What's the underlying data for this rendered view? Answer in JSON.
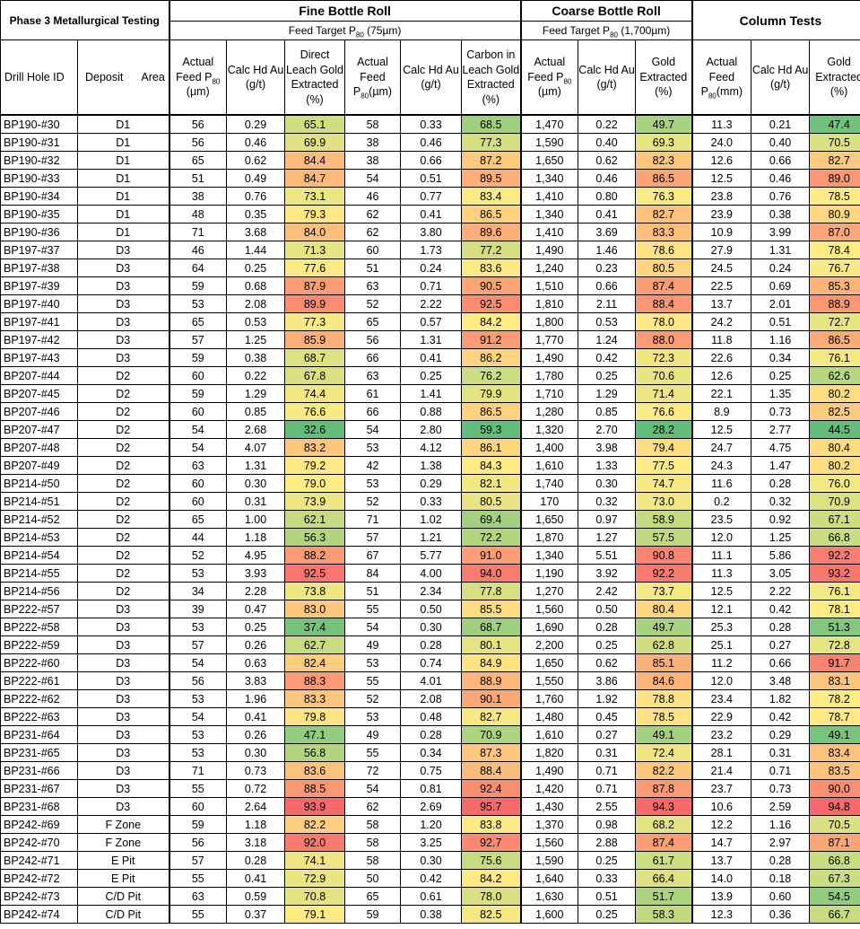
{
  "title": "Phase 3 Metallurgical Testing",
  "groups": {
    "fine": {
      "title": "Fine Bottle Roll",
      "target": "Feed Target P₈₀ (75µm)",
      "target_pre": "Feed Target P",
      "target_sub": "80",
      "target_post": " (75µm)"
    },
    "coarse": {
      "title": "Coarse Bottle Roll",
      "target_pre": "Feed Target P",
      "target_sub": "80",
      "target_post": " (1,700µm)"
    },
    "column": {
      "title": "Column Tests"
    }
  },
  "headers": {
    "drill": "Drill Hole ID",
    "deposit": "Deposit",
    "area": "Area",
    "fine_feed_pre": "Actual Feed P",
    "fine_feed_sub": "80",
    "fine_feed_post": " (µm)",
    "fine_calc": "Calc Hd Au (g/t)",
    "fine_direct": "Direct Leach Gold Extracted (%)",
    "fine_feed2_pre": "Actual Feed P",
    "fine_feed2_sub": "80",
    "fine_feed2_post": "(µm)",
    "fine_calc2": "Calc Hd Au (g/t)",
    "fine_cil": "Carbon in Leach Gold Extracted (%)",
    "coarse_feed_pre": "Actual Feed P",
    "coarse_feed_sub": "80",
    "coarse_feed_post": " (µm)",
    "coarse_calc": "Calc Hd Au (g/t)",
    "coarse_gold": "Gold Extracted (%)",
    "col_feed_pre": "Actual Feed P",
    "col_feed_sub": "80",
    "col_feed_post": "(mm)",
    "col_calc": "Calc Hd Au (g/t)",
    "col_gold": "Gold Extracted (%)"
  },
  "heat_colors": {
    "low": "#63be7b",
    "mid": "#ffeb84",
    "high": "#f8696b"
  },
  "rows": [
    [
      "BP190-#30",
      "D1",
      "56",
      "0.29",
      "65.1",
      "58",
      "0.33",
      "68.5",
      "1,470",
      "0.22",
      "49.7",
      "11.3",
      "0.21",
      "47.4"
    ],
    [
      "BP190-#31",
      "D1",
      "56",
      "0.46",
      "69.9",
      "38",
      "0.46",
      "77.3",
      "1,590",
      "0.40",
      "69.3",
      "24.0",
      "0.40",
      "70.5"
    ],
    [
      "BP190-#32",
      "D1",
      "65",
      "0.62",
      "84.4",
      "38",
      "0.66",
      "87.2",
      "1,650",
      "0.62",
      "82.3",
      "12.6",
      "0.66",
      "82.7"
    ],
    [
      "BP190-#33",
      "D1",
      "51",
      "0.49",
      "84.7",
      "54",
      "0.51",
      "89.5",
      "1,340",
      "0.46",
      "86.5",
      "12.5",
      "0.46",
      "89.0"
    ],
    [
      "BP190-#34",
      "D1",
      "38",
      "0.76",
      "73.1",
      "46",
      "0.77",
      "83.4",
      "1,410",
      "0.80",
      "76.3",
      "23.8",
      "0.76",
      "78.5"
    ],
    [
      "BP190-#35",
      "D1",
      "48",
      "0.35",
      "79.3",
      "62",
      "0.41",
      "86.5",
      "1,340",
      "0.41",
      "82.7",
      "23.9",
      "0.38",
      "80.9"
    ],
    [
      "BP190-#36",
      "D1",
      "71",
      "3.68",
      "84.0",
      "62",
      "3.80",
      "89.6",
      "1,410",
      "3.69",
      "83.3",
      "10.9",
      "3.99",
      "87.0"
    ],
    [
      "BP197-#37",
      "D3",
      "46",
      "1.44",
      "71.3",
      "60",
      "1.73",
      "77.2",
      "1,490",
      "1.46",
      "78.6",
      "27.9",
      "1.31",
      "78.4"
    ],
    [
      "BP197-#38",
      "D3",
      "64",
      "0.25",
      "77.6",
      "51",
      "0.24",
      "83.6",
      "1,240",
      "0.23",
      "80.5",
      "24.5",
      "0.24",
      "76.7"
    ],
    [
      "BP197-#39",
      "D3",
      "59",
      "0.68",
      "87.9",
      "63",
      "0.71",
      "90.5",
      "1,510",
      "0.66",
      "87.4",
      "22.5",
      "0.69",
      "85.3"
    ],
    [
      "BP197-#40",
      "D3",
      "53",
      "2.08",
      "89.9",
      "52",
      "2.22",
      "92.5",
      "1,810",
      "2.11",
      "88.4",
      "13.7",
      "2.01",
      "88.9"
    ],
    [
      "BP197-#41",
      "D3",
      "65",
      "0.53",
      "77.3",
      "65",
      "0.57",
      "84.2",
      "1,800",
      "0.53",
      "78.0",
      "24.2",
      "0.51",
      "72.7"
    ],
    [
      "BP197-#42",
      "D3",
      "57",
      "1.25",
      "85.9",
      "56",
      "1.31",
      "91.2",
      "1,770",
      "1.24",
      "88.0",
      "11.8",
      "1.16",
      "86.5"
    ],
    [
      "BP197-#43",
      "D3",
      "59",
      "0.38",
      "68.7",
      "66",
      "0.41",
      "86.2",
      "1,490",
      "0.42",
      "72.3",
      "22.6",
      "0.34",
      "76.1"
    ],
    [
      "BP207-#44",
      "D2",
      "60",
      "0.22",
      "67.8",
      "63",
      "0.25",
      "76.2",
      "1,780",
      "0.25",
      "70.6",
      "12.6",
      "0.25",
      "62.6"
    ],
    [
      "BP207-#45",
      "D2",
      "59",
      "1.29",
      "74.4",
      "61",
      "1.41",
      "79.9",
      "1,710",
      "1.29",
      "71.4",
      "22.1",
      "1.35",
      "80.2"
    ],
    [
      "BP207-#46",
      "D2",
      "60",
      "0.85",
      "76.6",
      "66",
      "0.88",
      "86.5",
      "1,280",
      "0.85",
      "76.6",
      "8.9",
      "0.73",
      "82.5"
    ],
    [
      "BP207-#47",
      "D2",
      "54",
      "2.68",
      "32.6",
      "54",
      "2.80",
      "59.3",
      "1,320",
      "2.70",
      "28.2",
      "12.5",
      "2.77",
      "44.5"
    ],
    [
      "BP207-#48",
      "D2",
      "54",
      "4.07",
      "83.2",
      "53",
      "4.12",
      "86.1",
      "1,400",
      "3.98",
      "79.4",
      "24.7",
      "4.75",
      "80.4"
    ],
    [
      "BP207-#49",
      "D2",
      "63",
      "1.31",
      "79.2",
      "42",
      "1.38",
      "84.3",
      "1,610",
      "1.33",
      "77.5",
      "24.3",
      "1.47",
      "80.2"
    ],
    [
      "BP214-#50",
      "D2",
      "60",
      "0.30",
      "79.0",
      "53",
      "0.29",
      "82.1",
      "1,740",
      "0.30",
      "74.7",
      "11.6",
      "0.28",
      "76.0"
    ],
    [
      "BP214-#51",
      "D2",
      "60",
      "0.31",
      "73.9",
      "52",
      "0.33",
      "80.5",
      "170",
      "0.32",
      "73.0",
      "0.2",
      "0.32",
      "70.9"
    ],
    [
      "BP214-#52",
      "D2",
      "65",
      "1.00",
      "62.1",
      "71",
      "1.02",
      "69.4",
      "1,650",
      "0.97",
      "58.9",
      "23.5",
      "0.92",
      "67.1"
    ],
    [
      "BP214-#53",
      "D2",
      "44",
      "1.18",
      "56.3",
      "57",
      "1.21",
      "72.2",
      "1,870",
      "1.27",
      "57.5",
      "12.0",
      "1.25",
      "66.8"
    ],
    [
      "BP214-#54",
      "D2",
      "52",
      "4.95",
      "88.2",
      "67",
      "5.77",
      "91.0",
      "1,340",
      "5.51",
      "90.8",
      "11.1",
      "5.86",
      "92.2"
    ],
    [
      "BP214-#55",
      "D2",
      "53",
      "3.93",
      "92.5",
      "84",
      "4.00",
      "94.0",
      "1,190",
      "3.92",
      "92.2",
      "11.3",
      "3.05",
      "93.2"
    ],
    [
      "BP214-#56",
      "D2",
      "34",
      "2.28",
      "73.8",
      "51",
      "2.34",
      "77.8",
      "1,270",
      "2.42",
      "73.7",
      "12.5",
      "2.22",
      "76.1"
    ],
    [
      "BP222-#57",
      "D3",
      "39",
      "0.47",
      "83.0",
      "55",
      "0.50",
      "85.5",
      "1,560",
      "0.50",
      "80.4",
      "12.1",
      "0.42",
      "78.1"
    ],
    [
      "BP222-#58",
      "D3",
      "53",
      "0.25",
      "37.4",
      "54",
      "0.30",
      "68.7",
      "1,690",
      "0.28",
      "49.7",
      "25.3",
      "0.28",
      "51.3"
    ],
    [
      "BP222-#59",
      "D3",
      "57",
      "0.26",
      "62.7",
      "49",
      "0.28",
      "80.1",
      "2,200",
      "0.25",
      "62.8",
      "25.1",
      "0.27",
      "72.8"
    ],
    [
      "BP222-#60",
      "D3",
      "54",
      "0.63",
      "82.4",
      "53",
      "0.74",
      "84.9",
      "1,650",
      "0.62",
      "85.1",
      "11.2",
      "0.66",
      "91.7"
    ],
    [
      "BP222-#61",
      "D3",
      "56",
      "3.83",
      "88.3",
      "55",
      "4.01",
      "88.9",
      "1,550",
      "3.86",
      "84.6",
      "12.0",
      "3.48",
      "83.1"
    ],
    [
      "BP222-#62",
      "D3",
      "53",
      "1.96",
      "83.3",
      "52",
      "2.08",
      "90.1",
      "1,760",
      "1.92",
      "78.8",
      "23.4",
      "1.82",
      "78.2"
    ],
    [
      "BP222-#63",
      "D3",
      "54",
      "0.41",
      "79.8",
      "53",
      "0.48",
      "82.7",
      "1,480",
      "0.45",
      "78.5",
      "22.9",
      "0.42",
      "78.7"
    ],
    [
      "BP231-#64",
      "D3",
      "53",
      "0.26",
      "47.1",
      "49",
      "0.28",
      "70.9",
      "1,610",
      "0.27",
      "49.1",
      "23.2",
      "0.29",
      "49.1"
    ],
    [
      "BP231-#65",
      "D3",
      "53",
      "0.30",
      "56.8",
      "55",
      "0.34",
      "87.3",
      "1,820",
      "0.31",
      "72.4",
      "28.1",
      "0.31",
      "83.4"
    ],
    [
      "BP231-#66",
      "D3",
      "71",
      "0.73",
      "83.6",
      "72",
      "0.75",
      "88.4",
      "1,490",
      "0.71",
      "82.2",
      "21.4",
      "0.71",
      "83.5"
    ],
    [
      "BP231-#67",
      "D3",
      "55",
      "0.72",
      "88.5",
      "54",
      "0.81",
      "92.4",
      "1,420",
      "0.71",
      "87.8",
      "23.7",
      "0.73",
      "90.0"
    ],
    [
      "BP231-#68",
      "D3",
      "60",
      "2.64",
      "93.9",
      "62",
      "2.69",
      "95.7",
      "1,430",
      "2.55",
      "94.3",
      "10.6",
      "2.59",
      "94.8"
    ],
    [
      "BP242-#69",
      "F Zone",
      "59",
      "1.18",
      "82.2",
      "58",
      "1.20",
      "83.8",
      "1,370",
      "0.98",
      "68.2",
      "12.2",
      "1.16",
      "70.5"
    ],
    [
      "BP242-#70",
      "F Zone",
      "56",
      "3.18",
      "92.0",
      "58",
      "3.25",
      "92.7",
      "1,560",
      "2.88",
      "87.4",
      "14.7",
      "2.97",
      "87.1"
    ],
    [
      "BP242-#71",
      "E Pit",
      "57",
      "0.28",
      "74.1",
      "58",
      "0.30",
      "75.6",
      "1,590",
      "0.25",
      "61.7",
      "13.7",
      "0.28",
      "66.8"
    ],
    [
      "BP242-#72",
      "E Pit",
      "55",
      "0.41",
      "72.9",
      "50",
      "0.42",
      "84.2",
      "1,640",
      "0.33",
      "66.4",
      "14.0",
      "0.18",
      "67.3"
    ],
    [
      "BP242-#73",
      "C/D Pit",
      "63",
      "0.59",
      "70.8",
      "65",
      "0.61",
      "78.0",
      "1,630",
      "0.51",
      "51.7",
      "13.9",
      "0.60",
      "54.5"
    ],
    [
      "BP242-#74",
      "C/D Pit",
      "55",
      "0.37",
      "79.1",
      "59",
      "0.38",
      "82.5",
      "1,600",
      "0.25",
      "58.3",
      "12.3",
      "0.36",
      "66.7"
    ]
  ]
}
